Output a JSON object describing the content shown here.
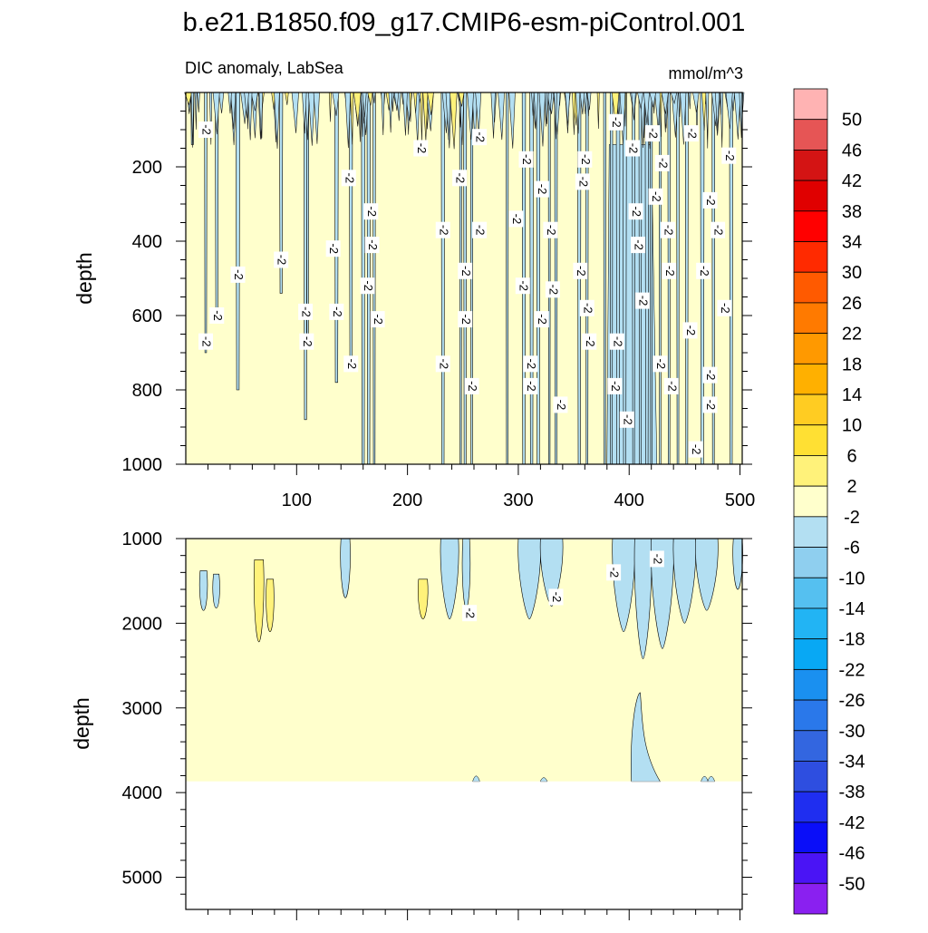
{
  "chart_data": [
    {
      "type": "heatmap",
      "title": "b.e21.B1850.f09_g17.CMIP6-esm-piControl.001",
      "subtitle_left": "DIC anomaly, LabSea",
      "subtitle_right": "mmol/m^3",
      "ylabel": "depth",
      "xlim": [
        0,
        502
      ],
      "ylim": [
        1000,
        0
      ],
      "y_reversed": true,
      "xticks": [
        100,
        200,
        300,
        400,
        500
      ],
      "yticks": [
        200,
        400,
        600,
        800,
        1000
      ],
      "contour_label": "-2",
      "background_interval": "-2 to 2",
      "negative_plumes": [
        {
          "x": 6,
          "bottom": 140
        },
        {
          "x": 18,
          "bottom": 700
        },
        {
          "x": 28,
          "bottom": 600
        },
        {
          "x": 47,
          "bottom": 800
        },
        {
          "x": 86,
          "bottom": 540
        },
        {
          "x": 108,
          "bottom": 880
        },
        {
          "x": 110,
          "bottom": 680
        },
        {
          "x": 136,
          "bottom": 780
        },
        {
          "x": 149,
          "bottom": 740
        },
        {
          "x": 160,
          "bottom": 1000
        },
        {
          "x": 165,
          "bottom": 1000
        },
        {
          "x": 170,
          "bottom": 1000
        },
        {
          "x": 232,
          "bottom": 1000
        },
        {
          "x": 248,
          "bottom": 1000
        },
        {
          "x": 252,
          "bottom": 1000
        },
        {
          "x": 258,
          "bottom": 1000
        },
        {
          "x": 290,
          "bottom": 1000
        },
        {
          "x": 305,
          "bottom": 1000
        },
        {
          "x": 312,
          "bottom": 1000
        },
        {
          "x": 318,
          "bottom": 1000
        },
        {
          "x": 328,
          "bottom": 1000
        },
        {
          "x": 334,
          "bottom": 1000
        },
        {
          "x": 355,
          "bottom": 1000
        },
        {
          "x": 362,
          "bottom": 1000
        },
        {
          "x": 378,
          "bottom": 1000
        },
        {
          "x": 384,
          "bottom": 1000
        },
        {
          "x": 390,
          "bottom": 1000
        },
        {
          "x": 396,
          "bottom": 1000
        },
        {
          "x": 404,
          "bottom": 1000
        },
        {
          "x": 410,
          "bottom": 1000
        },
        {
          "x": 416,
          "bottom": 1000
        },
        {
          "x": 420,
          "bottom": 1000
        },
        {
          "x": 428,
          "bottom": 1000
        },
        {
          "x": 436,
          "bottom": 1000
        },
        {
          "x": 444,
          "bottom": 1000
        },
        {
          "x": 452,
          "bottom": 1000
        },
        {
          "x": 466,
          "bottom": 1000
        },
        {
          "x": 476,
          "bottom": 1000
        },
        {
          "x": 492,
          "bottom": 1000
        }
      ],
      "label_points": [
        [
          18,
          100
        ],
        [
          212,
          150
        ],
        [
          265,
          120
        ],
        [
          388,
          80
        ],
        [
          403,
          150
        ],
        [
          421,
          110
        ],
        [
          456,
          110
        ],
        [
          490,
          170
        ],
        [
          307,
          180
        ],
        [
          360,
          180
        ],
        [
          430,
          190
        ],
        [
          147,
          230
        ],
        [
          247,
          230
        ],
        [
          358,
          240
        ],
        [
          321,
          260
        ],
        [
          424,
          280
        ],
        [
          473,
          290
        ],
        [
          167,
          320
        ],
        [
          406,
          320
        ],
        [
          298,
          340
        ],
        [
          232,
          370
        ],
        [
          265,
          370
        ],
        [
          329,
          370
        ],
        [
          133,
          420
        ],
        [
          168,
          410
        ],
        [
          408,
          410
        ],
        [
          435,
          370
        ],
        [
          480,
          370
        ],
        [
          86,
          450
        ],
        [
          47,
          490
        ],
        [
          252,
          480
        ],
        [
          356,
          480
        ],
        [
          436,
          480
        ],
        [
          467,
          480
        ],
        [
          304,
          520
        ],
        [
          164,
          520
        ],
        [
          331,
          530
        ],
        [
          28,
          600
        ],
        [
          108,
          590
        ],
        [
          136,
          590
        ],
        [
          173,
          610
        ],
        [
          252,
          610
        ],
        [
          321,
          610
        ],
        [
          362,
          580
        ],
        [
          412,
          560
        ],
        [
          486,
          580
        ],
        [
          18,
          670
        ],
        [
          109,
          670
        ],
        [
          364,
          670
        ],
        [
          389,
          670
        ],
        [
          455,
          640
        ],
        [
          149,
          730
        ],
        [
          232,
          730
        ],
        [
          311,
          730
        ],
        [
          428,
          730
        ],
        [
          258,
          790
        ],
        [
          311,
          790
        ],
        [
          387,
          790
        ],
        [
          438,
          790
        ],
        [
          473,
          760
        ],
        [
          338,
          840
        ],
        [
          473,
          840
        ],
        [
          398,
          880
        ],
        [
          460,
          960
        ]
      ]
    },
    {
      "type": "heatmap",
      "ylabel": "depth",
      "xlim": [
        0,
        502
      ],
      "ylim": [
        5380,
        1000
      ],
      "y_reversed": true,
      "yticks": [
        1000,
        2000,
        3000,
        4000,
        5000
      ],
      "contour_label": "-2",
      "land_below_depth": 3870,
      "negative_regions": [
        {
          "x0": 13,
          "x1": 19,
          "top": 1380,
          "bottom": 1850
        },
        {
          "x0": 25,
          "x1": 30,
          "top": 1420,
          "bottom": 1820
        },
        {
          "x0": 140,
          "x1": 148,
          "top": 1000,
          "bottom": 1700
        },
        {
          "x0": 230,
          "x1": 246,
          "top": 1000,
          "bottom": 1950
        },
        {
          "x0": 250,
          "x1": 256,
          "top": 1000,
          "bottom": 1820
        },
        {
          "x0": 300,
          "x1": 320,
          "top": 1000,
          "bottom": 1950
        },
        {
          "x0": 320,
          "x1": 340,
          "top": 1000,
          "bottom": 1800
        },
        {
          "x0": 385,
          "x1": 405,
          "top": 1000,
          "bottom": 2100
        },
        {
          "x0": 405,
          "x1": 420,
          "top": 1000,
          "bottom": 2420
        },
        {
          "x0": 420,
          "x1": 440,
          "top": 1000,
          "bottom": 2300
        },
        {
          "x0": 440,
          "x1": 460,
          "top": 1000,
          "bottom": 2000
        },
        {
          "x0": 460,
          "x1": 480,
          "top": 1000,
          "bottom": 1850
        },
        {
          "x0": 494,
          "x1": 502,
          "top": 1000,
          "bottom": 1600
        }
      ],
      "positive_regions": [
        {
          "x0": 62,
          "x1": 70,
          "top": 1250,
          "bottom": 2220
        },
        {
          "x0": 73,
          "x1": 79,
          "top": 1480,
          "bottom": 2100
        },
        {
          "x0": 210,
          "x1": 218,
          "top": 1480,
          "bottom": 1950
        }
      ],
      "deep_negative_region": {
        "x0": 402,
        "x1": 428,
        "top": 2820,
        "bottom": 3870
      },
      "label_points": [
        [
          256,
          1880
        ],
        [
          334,
          1690
        ],
        [
          386,
          1400
        ],
        [
          425,
          1240
        ]
      ]
    }
  ],
  "colorbar": {
    "labels": [
      "50",
      "46",
      "42",
      "38",
      "34",
      "30",
      "26",
      "22",
      "18",
      "14",
      "10",
      "6",
      "2",
      "-2",
      "-6",
      "-10",
      "-14",
      "-18",
      "-22",
      "-26",
      "-30",
      "-34",
      "-38",
      "-42",
      "-46",
      "-50"
    ],
    "colors": [
      "#ffb3b3",
      "#e65555",
      "#d41414",
      "#e00000",
      "#ff0000",
      "#ff2a00",
      "#ff5a00",
      "#ff7a00",
      "#ff9900",
      "#ffb000",
      "#ffcc22",
      "#ffe033",
      "#fff27a",
      "#ffffcc",
      "#b3dff2",
      "#8fcfef",
      "#55c0f0",
      "#22b4f4",
      "#08a8f4",
      "#1a90f0",
      "#2a78ea",
      "#3366e0",
      "#2e4ee0",
      "#1f2ef0",
      "#0a0ef8",
      "#4a14f5",
      "#8a20f0"
    ]
  }
}
